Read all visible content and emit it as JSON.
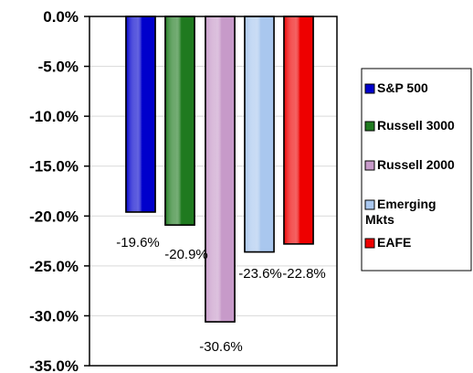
{
  "chart_data": {
    "type": "bar",
    "categories": [
      "S&P 500",
      "Russell 3000",
      "Russell 2000",
      "Emerging Mkts",
      "EAFE"
    ],
    "values": [
      -19.6,
      -20.9,
      -30.6,
      -23.6,
      -22.8
    ],
    "data_labels": [
      "-19.6%",
      "-20.9%",
      "-30.6%",
      "-23.6%",
      "-22.8%"
    ],
    "ylim": [
      -35,
      0
    ],
    "yticks": [
      0,
      -5,
      -10,
      -15,
      -20,
      -25,
      -30,
      -35
    ],
    "ytick_labels": [
      "0.0%",
      "-5.0%",
      "-10.0%",
      "-15.0%",
      "-20.0%",
      "-25.0%",
      "-30.0%",
      "-35.0%"
    ],
    "legend": {
      "placement": "right",
      "entries": [
        {
          "label": "S&P 500",
          "color": "#0000cc"
        },
        {
          "label": "Russell 3000",
          "color": "#1f7a1f"
        },
        {
          "label": "Russell 2000",
          "color": "#c79ac9"
        },
        {
          "label": "Emerging\nMkts",
          "color": "#a9c7ee"
        },
        {
          "label": "EAFE",
          "color": "#ee0000"
        }
      ]
    },
    "colors": [
      "#0000cc",
      "#1f7a1f",
      "#c79ac9",
      "#a9c7ee",
      "#ee0000"
    ],
    "grid": true
  }
}
